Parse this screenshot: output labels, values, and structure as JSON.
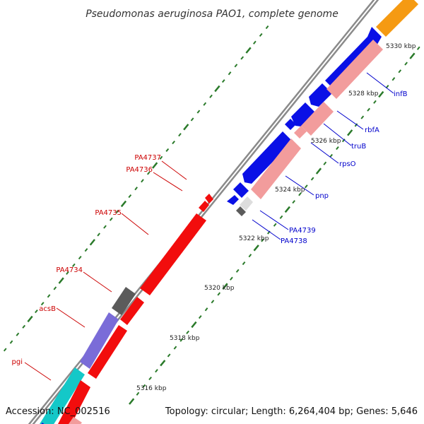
{
  "title": "Pseudomonas aeruginosa PAO1, complete genome",
  "footer": {
    "accession": "Accession: NC_002516",
    "summary": "Topology: circular; Length: 6,264,404 bp; Genes: 5,646"
  },
  "colors": {
    "blue": "#0a10e6",
    "pink": "#f29c9c",
    "orange": "#f59a12",
    "red": "#f20d0d",
    "dark_gray": "#5b5b5b",
    "light_gray": "#dddddd",
    "purple": "#7a6cd8",
    "cyan": "#14c8c8",
    "backbone": "#8a8a8a",
    "tick_green": "#2a7a2a",
    "label_blue": "#0000cc",
    "label_red": "#cc0000"
  },
  "ticks": [
    "5316 kbp",
    "5318 kbp",
    "5320 kbp",
    "5322 kbp",
    "5324 kbp",
    "5326 kbp",
    "5328 kbp",
    "5330 kbp"
  ],
  "gene_labels": {
    "plus": [
      "infB",
      "rbfA",
      "truB",
      "rpsO",
      "pnp",
      "PA4739",
      "PA4738"
    ],
    "minus": [
      "PA4737",
      "PA4736",
      "PA4735",
      "PA4734",
      "acsB",
      "pgi"
    ]
  }
}
